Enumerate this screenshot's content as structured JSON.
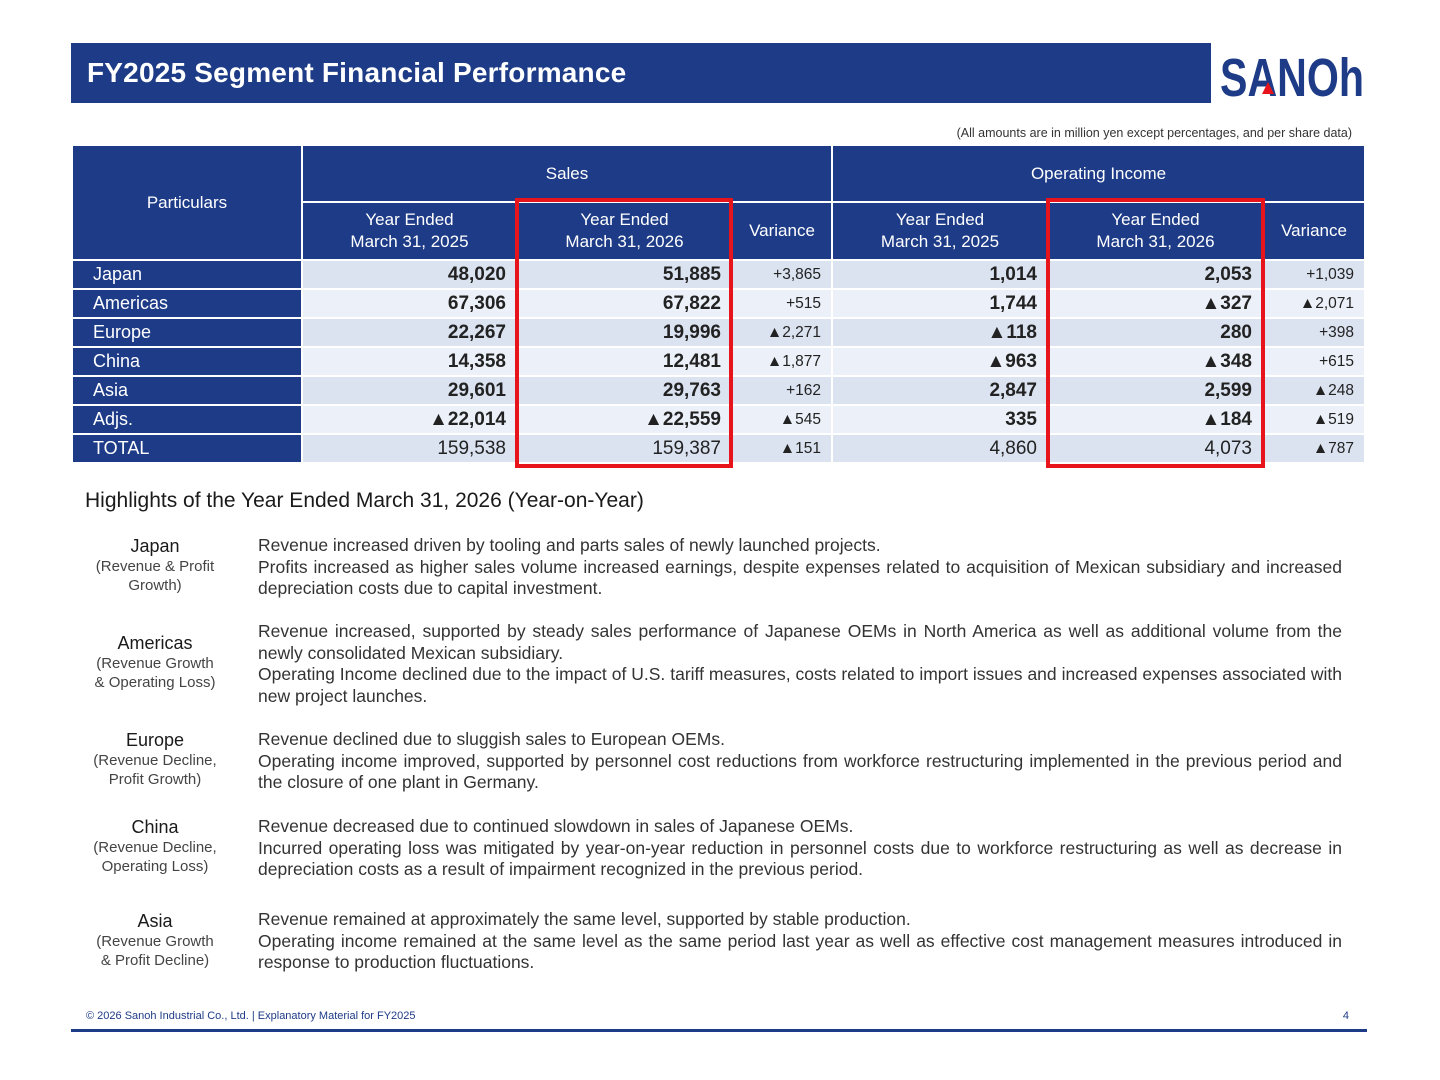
{
  "title": "FY2025 Segment Financial Performance",
  "logo_text": "SANOh",
  "units_note": "(All amounts are in million yen except percentages, and per share data)",
  "table": {
    "particulars_header": "Particulars",
    "sales_header": "Sales",
    "oi_header": "Operating Income",
    "col_fy2025_line1": "Year Ended",
    "col_fy2025_line2": "March 31, 2025",
    "col_fy2026_line1": "Year Ended",
    "col_fy2026_line2": "March 31, 2026",
    "col_variance": "Variance",
    "rows": [
      {
        "name": "Japan",
        "s25": "48,020",
        "s26": "51,885",
        "sv": "+3,865",
        "o25": "1,014",
        "o26": "2,053",
        "ov": "+1,039"
      },
      {
        "name": "Americas",
        "s25": "67,306",
        "s26": "67,822",
        "sv": "+515",
        "o25": "1,744",
        "o26": "▲327",
        "ov": "▲2,071"
      },
      {
        "name": "Europe",
        "s25": "22,267",
        "s26": "19,996",
        "sv": "▲2,271",
        "o25": "▲118",
        "o26": "280",
        "ov": "+398"
      },
      {
        "name": "China",
        "s25": "14,358",
        "s26": "12,481",
        "sv": "▲1,877",
        "o25": "▲963",
        "o26": "▲348",
        "ov": "+615"
      },
      {
        "name": "Asia",
        "s25": "29,601",
        "s26": "29,763",
        "sv": "+162",
        "o25": "2,847",
        "o26": "2,599",
        "ov": "▲248"
      },
      {
        "name": "Adjs.",
        "s25": "▲22,014",
        "s26": "▲22,559",
        "sv": "▲545",
        "o25": "335",
        "o26": "▲184",
        "ov": "▲519"
      },
      {
        "name": "TOTAL",
        "s25": "159,538",
        "s26": "159,387",
        "sv": "▲151",
        "o25": "4,860",
        "o26": "4,073",
        "ov": "▲787"
      }
    ]
  },
  "highlights": {
    "title": "Highlights of the Year Ended March 31, 2026 (Year-on-Year)",
    "items": [
      {
        "name": "Japan",
        "sub1": "(Revenue &  Profit",
        "sub2": "Growth)",
        "lines": [
          "Revenue increased driven by tooling and parts sales of newly launched projects.",
          "Profits increased as higher sales volume increased earnings, despite expenses related to acquisition of Mexican subsidiary and increased depreciation costs due to capital investment."
        ]
      },
      {
        "name": "Americas",
        "sub1": "(Revenue Growth",
        "sub2": "& Operating Loss)",
        "lines": [
          "Revenue increased, supported by steady sales performance of Japanese OEMs in North America as well as additional volume from the newly consolidated Mexican subsidiary.",
          "Operating Income declined due to the impact of U.S. tariff measures, costs related to import issues and increased expenses associated with new project launches."
        ]
      },
      {
        "name": "Europe",
        "sub1": "(Revenue Decline,",
        "sub2": "Profit Growth)",
        "lines": [
          "Revenue declined due to sluggish sales to European OEMs.",
          "Operating income improved, supported by personnel cost reductions from workforce restructuring implemented in the previous period and the closure of one plant in Germany."
        ]
      },
      {
        "name": "China",
        "sub1": "(Revenue Decline,",
        "sub2": "Operating Loss)",
        "lines": [
          "Revenue decreased due to continued slowdown in sales of Japanese OEMs.",
          "Incurred operating loss was mitigated by year-on-year reduction in personnel costs due to workforce restructuring as well as decrease in depreciation costs as a result of impairment recognized in the previous period."
        ]
      },
      {
        "name": "Asia",
        "sub1": "(Revenue Growth",
        "sub2": "& Profit Decline)",
        "lines": [
          "Revenue remained at approximately the same level, supported by stable production.",
          "Operating income remained at the same level as the same period last year as well as effective cost management measures introduced in response to production fluctuations."
        ]
      }
    ]
  },
  "footer": {
    "copyright": "© 2026 Sanoh Industrial Co., Ltd. | Explanatory Material for FY2025",
    "page": "4"
  },
  "colors": {
    "brand_navy": "#1d3b86",
    "highlight_red": "#e8141c"
  }
}
